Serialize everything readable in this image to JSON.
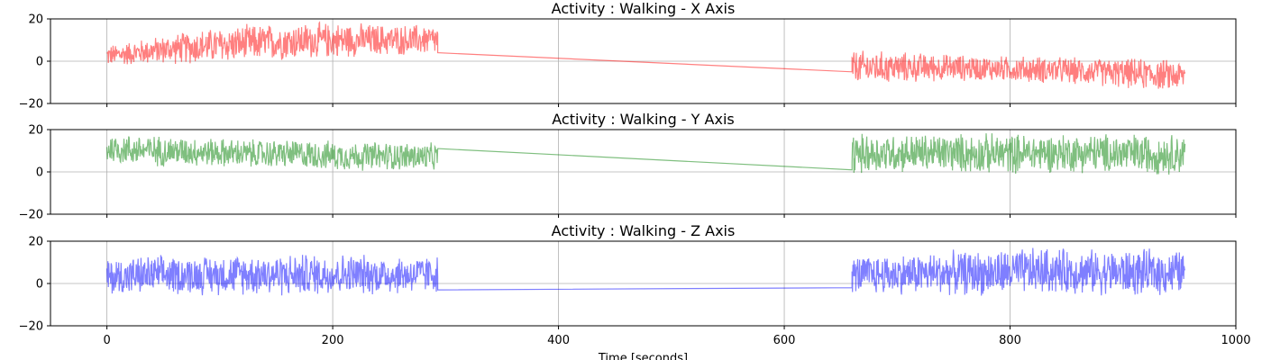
{
  "chart_data": [
    {
      "type": "line",
      "title": "Activity : Walking - X Axis",
      "xlabel": "",
      "ylabel": "",
      "xlim": [
        -50,
        1000
      ],
      "ylim": [
        -20,
        20
      ],
      "yticks": [
        -20,
        0,
        20
      ],
      "xticks": [
        0,
        200,
        400,
        600,
        800,
        1000
      ],
      "show_xtick_labels": false,
      "grid": true,
      "color": "#ff0000",
      "segments": [
        {
          "x_start": 0,
          "x_end": 293,
          "band_low": [
            -3,
            -2,
            -2,
            -1,
            0,
            1,
            2,
            2
          ],
          "band_high": [
            8,
            12,
            16,
            18,
            19,
            19,
            18,
            18
          ],
          "line_end": 4
        },
        {
          "x_start": 660,
          "x_end": 955,
          "band_low": [
            -12,
            -11,
            -10,
            -10,
            -11,
            -12,
            -14,
            -15
          ],
          "band_high": [
            6,
            5,
            4,
            3,
            3,
            2,
            2,
            1
          ],
          "line_start": -5
        }
      ]
    },
    {
      "type": "line",
      "title": "Activity : Walking - Y Axis",
      "xlabel": "",
      "ylabel": "",
      "xlim": [
        -50,
        1000
      ],
      "ylim": [
        -20,
        20
      ],
      "yticks": [
        -20,
        0,
        20
      ],
      "xticks": [
        0,
        200,
        400,
        600,
        800,
        1000
      ],
      "show_xtick_labels": false,
      "grid": true,
      "color": "#008000",
      "segments": [
        {
          "x_start": 0,
          "x_end": 293,
          "band_low": [
            3,
            2,
            2,
            1,
            1,
            0,
            0,
            0
          ],
          "band_high": [
            19,
            18,
            17,
            16,
            16,
            15,
            15,
            14
          ],
          "line_end": 11
        },
        {
          "x_start": 660,
          "x_end": 955,
          "band_low": [
            -2,
            -1,
            -1,
            -2,
            -1,
            -1,
            -2,
            -2
          ],
          "band_high": [
            19,
            19,
            19,
            19,
            19,
            19,
            19,
            19
          ],
          "line_start": 1
        }
      ]
    },
    {
      "type": "line",
      "title": "Activity : Walking - Z Axis",
      "xlabel": "Time [seconds]",
      "ylabel": "",
      "xlim": [
        -50,
        1000
      ],
      "ylim": [
        -20,
        20
      ],
      "yticks": [
        -20,
        0,
        20
      ],
      "xticks": [
        0,
        200,
        400,
        600,
        800,
        1000
      ],
      "show_xtick_labels": true,
      "grid": true,
      "color": "#0000ff",
      "segments": [
        {
          "x_start": 0,
          "x_end": 293,
          "band_low": [
            -7,
            -6,
            -6,
            -6,
            -7,
            -6,
            -6,
            -5
          ],
          "band_high": [
            13,
            14,
            14,
            15,
            15,
            15,
            14,
            14
          ],
          "line_end": -3
        },
        {
          "x_start": 660,
          "x_end": 955,
          "band_low": [
            -6,
            -6,
            -6,
            -7,
            -6,
            -6,
            -7,
            -6
          ],
          "band_high": [
            14,
            15,
            16,
            17,
            18,
            17,
            17,
            17
          ],
          "line_start": -2
        }
      ]
    }
  ]
}
